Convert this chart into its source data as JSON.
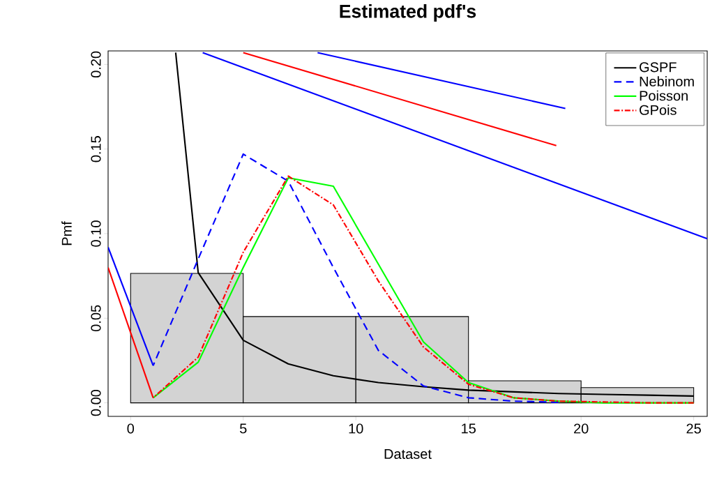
{
  "chart_data": {
    "type": "histogram",
    "title": "Estimated pdf's",
    "xlabel": "Dataset",
    "ylabel": "Pmf",
    "bins": [
      0,
      5,
      10,
      15,
      20,
      25
    ],
    "values": [
      0.0765,
      0.051,
      0.051,
      0.013,
      0.009
    ],
    "color": "#d3d3d3",
    "xlim": [
      -1,
      25.6
    ],
    "ylim": [
      -0.008,
      0.208
    ],
    "xticks": [
      0,
      5,
      10,
      15,
      20,
      25
    ],
    "yticks": [
      {
        "value": 0,
        "label": "0.00"
      },
      {
        "value": 0.05,
        "label": "0.05"
      },
      {
        "value": 0.1,
        "label": "0.10"
      },
      {
        "value": 0.15,
        "label": "0.15"
      },
      {
        "value": 0.2,
        "label": "0.20"
      }
    ],
    "grid": false,
    "legend": "top right",
    "series": [
      {
        "name": "GSPF",
        "type": "line",
        "color": "#000000",
        "line_style": "solid",
        "x": [
          2,
          3,
          5,
          7,
          9,
          11,
          13,
          15,
          17,
          19,
          21,
          23,
          25
        ],
        "values": [
          0.207,
          0.077,
          0.037,
          0.023,
          0.016,
          0.012,
          0.0095,
          0.0075,
          0.0065,
          0.0055,
          0.005,
          0.0045,
          0.004
        ]
      },
      {
        "name": "Nebinom",
        "type": "line",
        "color": "#0000ff",
        "line_style": "dashed",
        "x": [
          1,
          3,
          5,
          7,
          9,
          11,
          13,
          15,
          17,
          19
        ],
        "values": [
          0.022,
          0.085,
          0.147,
          0.131,
          0.08,
          0.031,
          0.01,
          0.003,
          0.001,
          0.0003
        ]
      },
      {
        "name": "Poisson",
        "type": "line",
        "color": "#00ff00",
        "line_style": "solid",
        "x": [
          1,
          3,
          5,
          7,
          9,
          11,
          13,
          15,
          17,
          19,
          21,
          23,
          25
        ],
        "values": [
          0.003,
          0.024,
          0.08,
          0.133,
          0.128,
          0.082,
          0.036,
          0.012,
          0.003,
          0.001,
          0,
          0,
          0
        ]
      },
      {
        "name": "GPois",
        "type": "line",
        "color": "#ff0000",
        "line_style": "dashdot",
        "x": [
          1,
          3,
          5,
          7,
          9,
          11,
          13,
          15,
          17,
          19,
          21,
          23,
          25
        ],
        "values": [
          0.003,
          0.027,
          0.089,
          0.134,
          0.117,
          0.072,
          0.033,
          0.011,
          0.003,
          0.001,
          0.0005,
          0,
          0
        ]
      },
      {
        "type": "line",
        "color": "#0000ff",
        "line_style": "solid",
        "x": [
          -1,
          1
        ],
        "values": [
          0.092,
          0.022
        ]
      },
      {
        "type": "line",
        "color": "#ff0000",
        "line_style": "solid",
        "x": [
          -1,
          1
        ],
        "values": [
          0.08,
          0.003
        ]
      },
      {
        "type": "line",
        "color": "#0000ff",
        "line_style": "solid",
        "x": [
          3.2,
          25.6
        ],
        "values": [
          0.207,
          0.097
        ]
      },
      {
        "type": "line",
        "color": "#0000ff",
        "line_style": "solid",
        "x": [
          8.3,
          19.3
        ],
        "values": [
          0.207,
          0.174
        ]
      },
      {
        "type": "line",
        "color": "#ff0000",
        "line_style": "solid",
        "x": [
          5,
          18.9
        ],
        "values": [
          0.207,
          0.152
        ]
      }
    ]
  }
}
